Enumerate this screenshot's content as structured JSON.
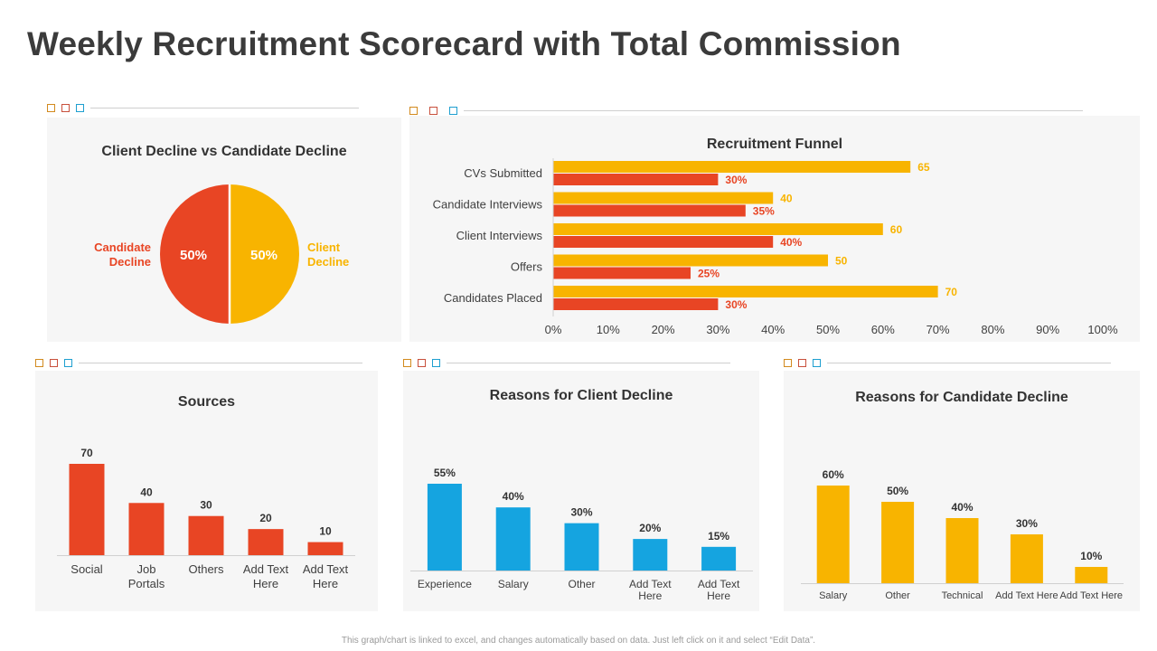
{
  "page": {
    "title": "Weekly Recruitment Scorecard with Total Commission",
    "footer": "This graph/chart is linked to excel, and changes automatically based on data. Just left click on it and select “Edit Data”."
  },
  "colors": {
    "red": "#e84524",
    "yellow": "#f8b400",
    "blue": "#15a4e0",
    "deco_1": "#d28a1e",
    "deco_2": "#c8503c",
    "deco_3": "#1e9fd0"
  },
  "chart_data": [
    {
      "id": "pie",
      "type": "pie",
      "title": "Client Decline vs Candidate Decline",
      "slices": [
        {
          "label_line1": "Candidate",
          "label_line2": "Decline",
          "value": 50,
          "display": "50%",
          "color": "#e84524"
        },
        {
          "label_line1": "Client",
          "label_line2": "Decline",
          "value": 50,
          "display": "50%",
          "color": "#f8b400"
        }
      ]
    },
    {
      "id": "funnel",
      "type": "bar",
      "orientation": "horizontal",
      "title": "Recruitment Funnel",
      "categories": [
        "CVs Submitted",
        "Candidate Interviews",
        "Client Interviews",
        "Offers",
        "Candidates Placed"
      ],
      "series": [
        {
          "name": "Count",
          "values": [
            65,
            40,
            60,
            50,
            70
          ],
          "labels": [
            "65",
            "40",
            "60",
            "50",
            "70"
          ],
          "color": "#f8b400"
        },
        {
          "name": "Rate",
          "values": [
            30,
            35,
            40,
            25,
            30
          ],
          "labels": [
            "30%",
            "35%",
            "40%",
            "25%",
            "30%"
          ],
          "color": "#e84524"
        }
      ],
      "xlim": [
        0,
        100
      ],
      "ticks": [
        "0%",
        "10%",
        "20%",
        "30%",
        "40%",
        "50%",
        "60%",
        "70%",
        "80%",
        "90%",
        "100%"
      ]
    },
    {
      "id": "sources",
      "type": "bar",
      "title": "Sources",
      "categories": [
        [
          "Social"
        ],
        [
          "Job",
          "Portals"
        ],
        [
          "Others"
        ],
        [
          "Add Text",
          "Here"
        ],
        [
          "Add Text",
          "Here"
        ]
      ],
      "values": [
        70,
        40,
        30,
        20,
        10
      ],
      "labels": [
        "70",
        "40",
        "30",
        "20",
        "10"
      ],
      "ylim": [
        0,
        70
      ],
      "color": "#e84524"
    },
    {
      "id": "client",
      "type": "bar",
      "title": "Reasons for Client Decline",
      "categories": [
        [
          "Experience"
        ],
        [
          "Salary"
        ],
        [
          "Other"
        ],
        [
          "Add Text",
          "Here"
        ],
        [
          "Add Text",
          "Here"
        ]
      ],
      "values": [
        55,
        40,
        30,
        20,
        15
      ],
      "labels": [
        "55%",
        "40%",
        "30%",
        "20%",
        "15%"
      ],
      "ylim": [
        0,
        55
      ],
      "color": "#15a4e0"
    },
    {
      "id": "candidate",
      "type": "bar",
      "title": "Reasons for Candidate Decline",
      "categories": [
        [
          "Salary"
        ],
        [
          "Other"
        ],
        [
          "Technical"
        ],
        [
          "Add Text Here"
        ],
        [
          "Add Text Here"
        ]
      ],
      "values": [
        60,
        50,
        40,
        30,
        10
      ],
      "labels": [
        "60%",
        "50%",
        "40%",
        "30%",
        "10%"
      ],
      "ylim": [
        0,
        60
      ],
      "color": "#f8b400"
    }
  ]
}
